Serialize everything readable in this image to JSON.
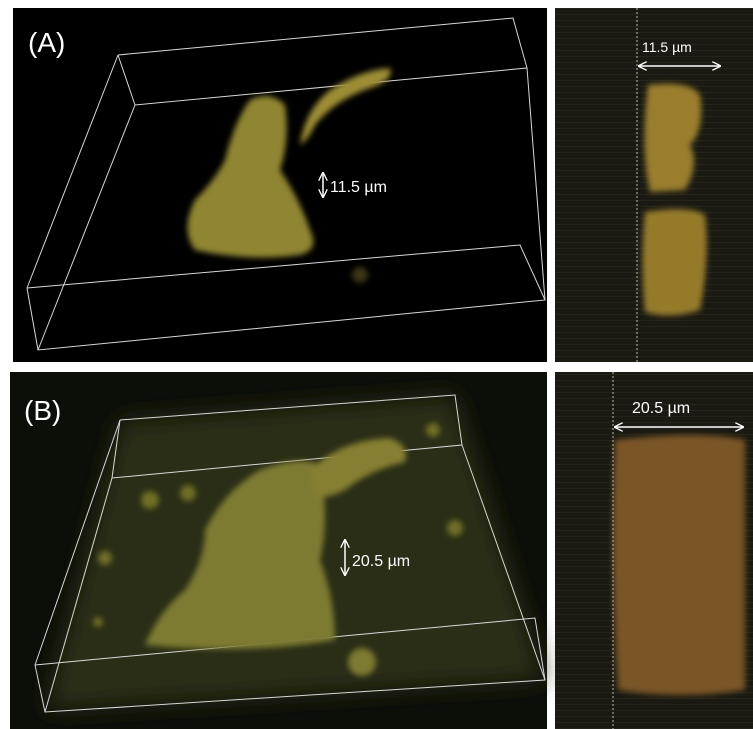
{
  "panels": [
    {
      "label": "(A)",
      "main_annotation": "11.5 µm",
      "side_annotation": "11.5 µm"
    },
    {
      "label": "(B)",
      "main_annotation": "20.5 µm",
      "side_annotation": "20.5 µm"
    }
  ]
}
